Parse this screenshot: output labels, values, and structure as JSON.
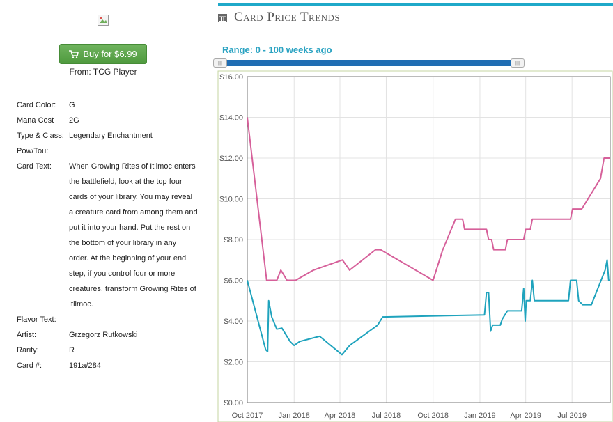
{
  "buy": {
    "label": "Buy for $6.99",
    "source": "From: TCG Player"
  },
  "card": {
    "rows": [
      {
        "k": "Card Color:",
        "v": "G"
      },
      {
        "k": "Mana Cost",
        "v": "2G"
      },
      {
        "k": "Type & Class:",
        "v": "Legendary Enchantment"
      },
      {
        "k": "Pow/Tou:",
        "v": ""
      },
      {
        "k": "Card Text:",
        "v": "When Growing Rites of Itlimoc enters the battlefield, look at the top four cards of your library. You may reveal a creature card from among them and put it into your hand. Put the rest on the bottom of your library in any order. At the beginning of your end step, if you control four or more creatures, transform Growing Rites of Itlimoc."
      },
      {
        "k": "Flavor Text:",
        "v": ""
      },
      {
        "k": "Artist:",
        "v": "Grzegorz Rutkowski"
      },
      {
        "k": "Rarity:",
        "v": "R"
      },
      {
        "k": "Card #:",
        "v": "191a/284"
      }
    ]
  },
  "section": {
    "title": "Card Price Trends",
    "range": "Range: 0 - 100 weeks ago"
  },
  "colors": {
    "accent": "#1fa9c9",
    "pink": "#d6609a",
    "teal": "#1fa3bd",
    "button": "#5aa64a"
  },
  "chart_data": {
    "type": "line",
    "ylim": [
      0,
      16
    ],
    "yticks": [
      "$0.00",
      "$2.00",
      "$4.00",
      "$6.00",
      "$8.00",
      "$10.00",
      "$12.00",
      "$14.00",
      "$16.00"
    ],
    "xticks": [
      "Oct 2017",
      "Jan 2018",
      "Apr 2018",
      "Jul 2018",
      "Oct 2018",
      "Jan 2019",
      "Apr 2019",
      "Jul 2019"
    ],
    "xtick_dates": [
      "2017-10-01",
      "2018-01-01",
      "2018-04-01",
      "2018-07-01",
      "2018-10-01",
      "2019-01-01",
      "2019-04-01",
      "2019-07-01"
    ],
    "xlim": [
      "2017-10-01",
      "2019-09-14"
    ],
    "grid": true,
    "series": [
      {
        "values": [
          [
            "2017-10-01",
            14.0
          ],
          [
            "2017-11-08",
            6.0
          ],
          [
            "2017-11-28",
            6.0
          ],
          [
            "2017-12-06",
            6.5
          ],
          [
            "2017-12-18",
            6.0
          ],
          [
            "2018-01-04",
            6.0
          ],
          [
            "2018-02-08",
            6.5
          ],
          [
            "2018-04-06",
            7.0
          ],
          [
            "2018-04-20",
            6.5
          ],
          [
            "2018-06-10",
            7.5
          ],
          [
            "2018-06-20",
            7.5
          ],
          [
            "2018-10-01",
            6.0
          ],
          [
            "2018-10-20",
            7.5
          ],
          [
            "2018-11-14",
            9.0
          ],
          [
            "2018-11-28",
            9.0
          ],
          [
            "2018-12-02",
            8.5
          ],
          [
            "2019-01-08",
            8.5
          ],
          [
            "2019-01-14",
            8.5
          ],
          [
            "2019-01-18",
            8.0
          ],
          [
            "2019-01-24",
            8.0
          ],
          [
            "2019-01-28",
            7.5
          ],
          [
            "2019-02-20",
            7.5
          ],
          [
            "2019-02-24",
            8.0
          ],
          [
            "2019-03-28",
            8.0
          ],
          [
            "2019-04-01",
            8.5
          ],
          [
            "2019-04-10",
            8.5
          ],
          [
            "2019-04-14",
            9.0
          ],
          [
            "2019-06-28",
            9.0
          ],
          [
            "2019-07-02",
            9.5
          ],
          [
            "2019-07-20",
            9.5
          ],
          [
            "2019-08-26",
            11.0
          ],
          [
            "2019-09-02",
            12.0
          ],
          [
            "2019-09-14",
            12.0
          ]
        ]
      },
      {
        "values": [
          [
            "2017-10-01",
            6.0
          ],
          [
            "2017-11-06",
            2.6
          ],
          [
            "2017-11-10",
            2.5
          ],
          [
            "2017-11-12",
            5.0
          ],
          [
            "2017-11-18",
            4.2
          ],
          [
            "2017-11-28",
            3.6
          ],
          [
            "2017-12-08",
            3.65
          ],
          [
            "2017-12-24",
            3.0
          ],
          [
            "2018-01-01",
            2.8
          ],
          [
            "2018-01-12",
            3.0
          ],
          [
            "2018-02-20",
            3.25
          ],
          [
            "2018-04-05",
            2.35
          ],
          [
            "2018-04-20",
            2.8
          ],
          [
            "2018-06-14",
            3.8
          ],
          [
            "2018-06-24",
            4.2
          ],
          [
            "2019-01-10",
            4.3
          ],
          [
            "2019-01-14",
            5.4
          ],
          [
            "2019-01-18",
            5.4
          ],
          [
            "2019-01-22",
            3.5
          ],
          [
            "2019-01-26",
            3.8
          ],
          [
            "2019-02-10",
            3.8
          ],
          [
            "2019-02-14",
            4.1
          ],
          [
            "2019-02-24",
            4.5
          ],
          [
            "2019-03-24",
            4.5
          ],
          [
            "2019-03-28",
            5.6
          ],
          [
            "2019-03-31",
            4.0
          ],
          [
            "2019-04-02",
            5.0
          ],
          [
            "2019-04-10",
            5.0
          ],
          [
            "2019-04-14",
            6.0
          ],
          [
            "2019-04-18",
            5.0
          ],
          [
            "2019-06-24",
            5.0
          ],
          [
            "2019-06-28",
            6.0
          ],
          [
            "2019-07-10",
            6.0
          ],
          [
            "2019-07-14",
            5.0
          ],
          [
            "2019-07-22",
            4.8
          ],
          [
            "2019-08-08",
            4.8
          ],
          [
            "2019-09-04",
            6.5
          ],
          [
            "2019-09-08",
            7.0
          ],
          [
            "2019-09-11",
            6.0
          ],
          [
            "2019-09-14",
            6.0
          ]
        ]
      }
    ]
  }
}
